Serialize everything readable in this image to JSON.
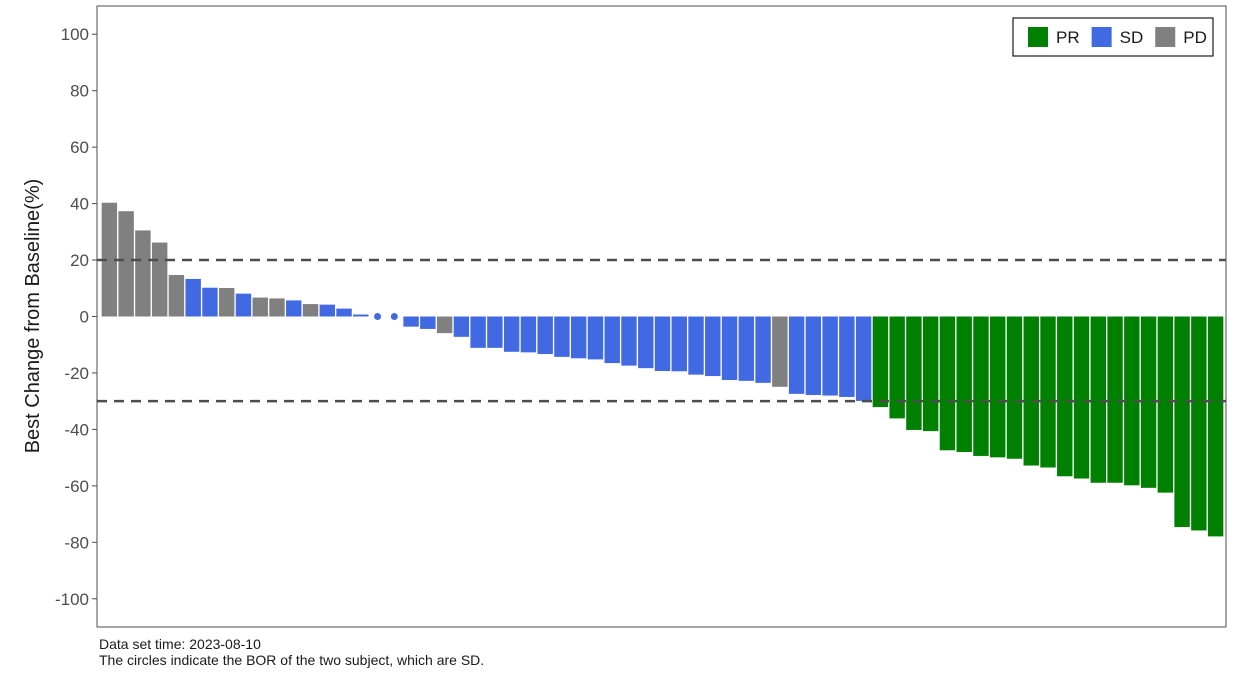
{
  "chart_data": {
    "type": "bar",
    "title": "",
    "xlabel": "",
    "ylabel": "Best Change from Baseline(%)",
    "ylim": [
      -110,
      110
    ],
    "yticks": [
      100,
      80,
      60,
      40,
      20,
      0,
      -20,
      -40,
      -60,
      -80,
      -100
    ],
    "reference_lines": [
      20,
      -30
    ],
    "grid": false,
    "legend_position": "top-right",
    "colors": {
      "PR": "#008000",
      "SD": "#4169e1",
      "PD": "#808080"
    },
    "legend": [
      {
        "label": "PR",
        "category": "PR"
      },
      {
        "label": "SD",
        "category": "SD"
      },
      {
        "label": "PD",
        "category": "PD"
      }
    ],
    "bars": [
      {
        "value": 40.3,
        "category": "PD"
      },
      {
        "value": 37.3,
        "category": "PD"
      },
      {
        "value": 30.5,
        "category": "PD"
      },
      {
        "value": 26.2,
        "category": "PD"
      },
      {
        "value": 14.7,
        "category": "PD"
      },
      {
        "value": 13.3,
        "category": "SD"
      },
      {
        "value": 10.2,
        "category": "SD"
      },
      {
        "value": 10.1,
        "category": "PD"
      },
      {
        "value": 8.1,
        "category": "SD"
      },
      {
        "value": 6.7,
        "category": "PD"
      },
      {
        "value": 6.4,
        "category": "PD"
      },
      {
        "value": 5.7,
        "category": "SD"
      },
      {
        "value": 4.4,
        "category": "PD"
      },
      {
        "value": 4.2,
        "category": "SD"
      },
      {
        "value": 2.8,
        "category": "SD"
      },
      {
        "value": 0.7,
        "category": "SD"
      },
      {
        "value": 0,
        "category": "SD",
        "marker": "circle"
      },
      {
        "value": 0,
        "category": "SD",
        "marker": "circle"
      },
      {
        "value": -3.6,
        "category": "SD"
      },
      {
        "value": -4.4,
        "category": "SD"
      },
      {
        "value": -5.9,
        "category": "PD"
      },
      {
        "value": -7.2,
        "category": "SD"
      },
      {
        "value": -11.1,
        "category": "SD"
      },
      {
        "value": -11.1,
        "category": "SD"
      },
      {
        "value": -12.5,
        "category": "SD"
      },
      {
        "value": -12.7,
        "category": "SD"
      },
      {
        "value": -13.3,
        "category": "SD"
      },
      {
        "value": -14.3,
        "category": "SD"
      },
      {
        "value": -14.8,
        "category": "SD"
      },
      {
        "value": -15.2,
        "category": "SD"
      },
      {
        "value": -16.5,
        "category": "SD"
      },
      {
        "value": -17.4,
        "category": "SD"
      },
      {
        "value": -18.3,
        "category": "SD"
      },
      {
        "value": -19.3,
        "category": "SD"
      },
      {
        "value": -19.4,
        "category": "SD"
      },
      {
        "value": -20.6,
        "category": "SD"
      },
      {
        "value": -21.1,
        "category": "SD"
      },
      {
        "value": -22.5,
        "category": "SD"
      },
      {
        "value": -22.8,
        "category": "SD"
      },
      {
        "value": -23.5,
        "category": "SD"
      },
      {
        "value": -24.9,
        "category": "PD"
      },
      {
        "value": -27.4,
        "category": "SD"
      },
      {
        "value": -27.8,
        "category": "SD"
      },
      {
        "value": -28.0,
        "category": "SD"
      },
      {
        "value": -28.5,
        "category": "SD"
      },
      {
        "value": -29.9,
        "category": "SD"
      },
      {
        "value": -32.1,
        "category": "PR"
      },
      {
        "value": -36.1,
        "category": "PR"
      },
      {
        "value": -40.2,
        "category": "PR"
      },
      {
        "value": -40.6,
        "category": "PR"
      },
      {
        "value": -47.4,
        "category": "PR"
      },
      {
        "value": -48.0,
        "category": "PR"
      },
      {
        "value": -49.4,
        "category": "PR"
      },
      {
        "value": -49.9,
        "category": "PR"
      },
      {
        "value": -50.4,
        "category": "PR"
      },
      {
        "value": -52.8,
        "category": "PR"
      },
      {
        "value": -53.5,
        "category": "PR"
      },
      {
        "value": -56.6,
        "category": "PR"
      },
      {
        "value": -57.4,
        "category": "PR"
      },
      {
        "value": -58.9,
        "category": "PR"
      },
      {
        "value": -58.9,
        "category": "PR"
      },
      {
        "value": -59.8,
        "category": "PR"
      },
      {
        "value": -60.7,
        "category": "PR"
      },
      {
        "value": -62.4,
        "category": "PR"
      },
      {
        "value": -74.6,
        "category": "PR"
      },
      {
        "value": -75.8,
        "category": "PR"
      },
      {
        "value": -77.9,
        "category": "PR"
      }
    ]
  },
  "footnotes": {
    "line1": "Data set time:  2023-08-10",
    "line2": "The circles indicate the BOR of the two subject, which are SD."
  }
}
